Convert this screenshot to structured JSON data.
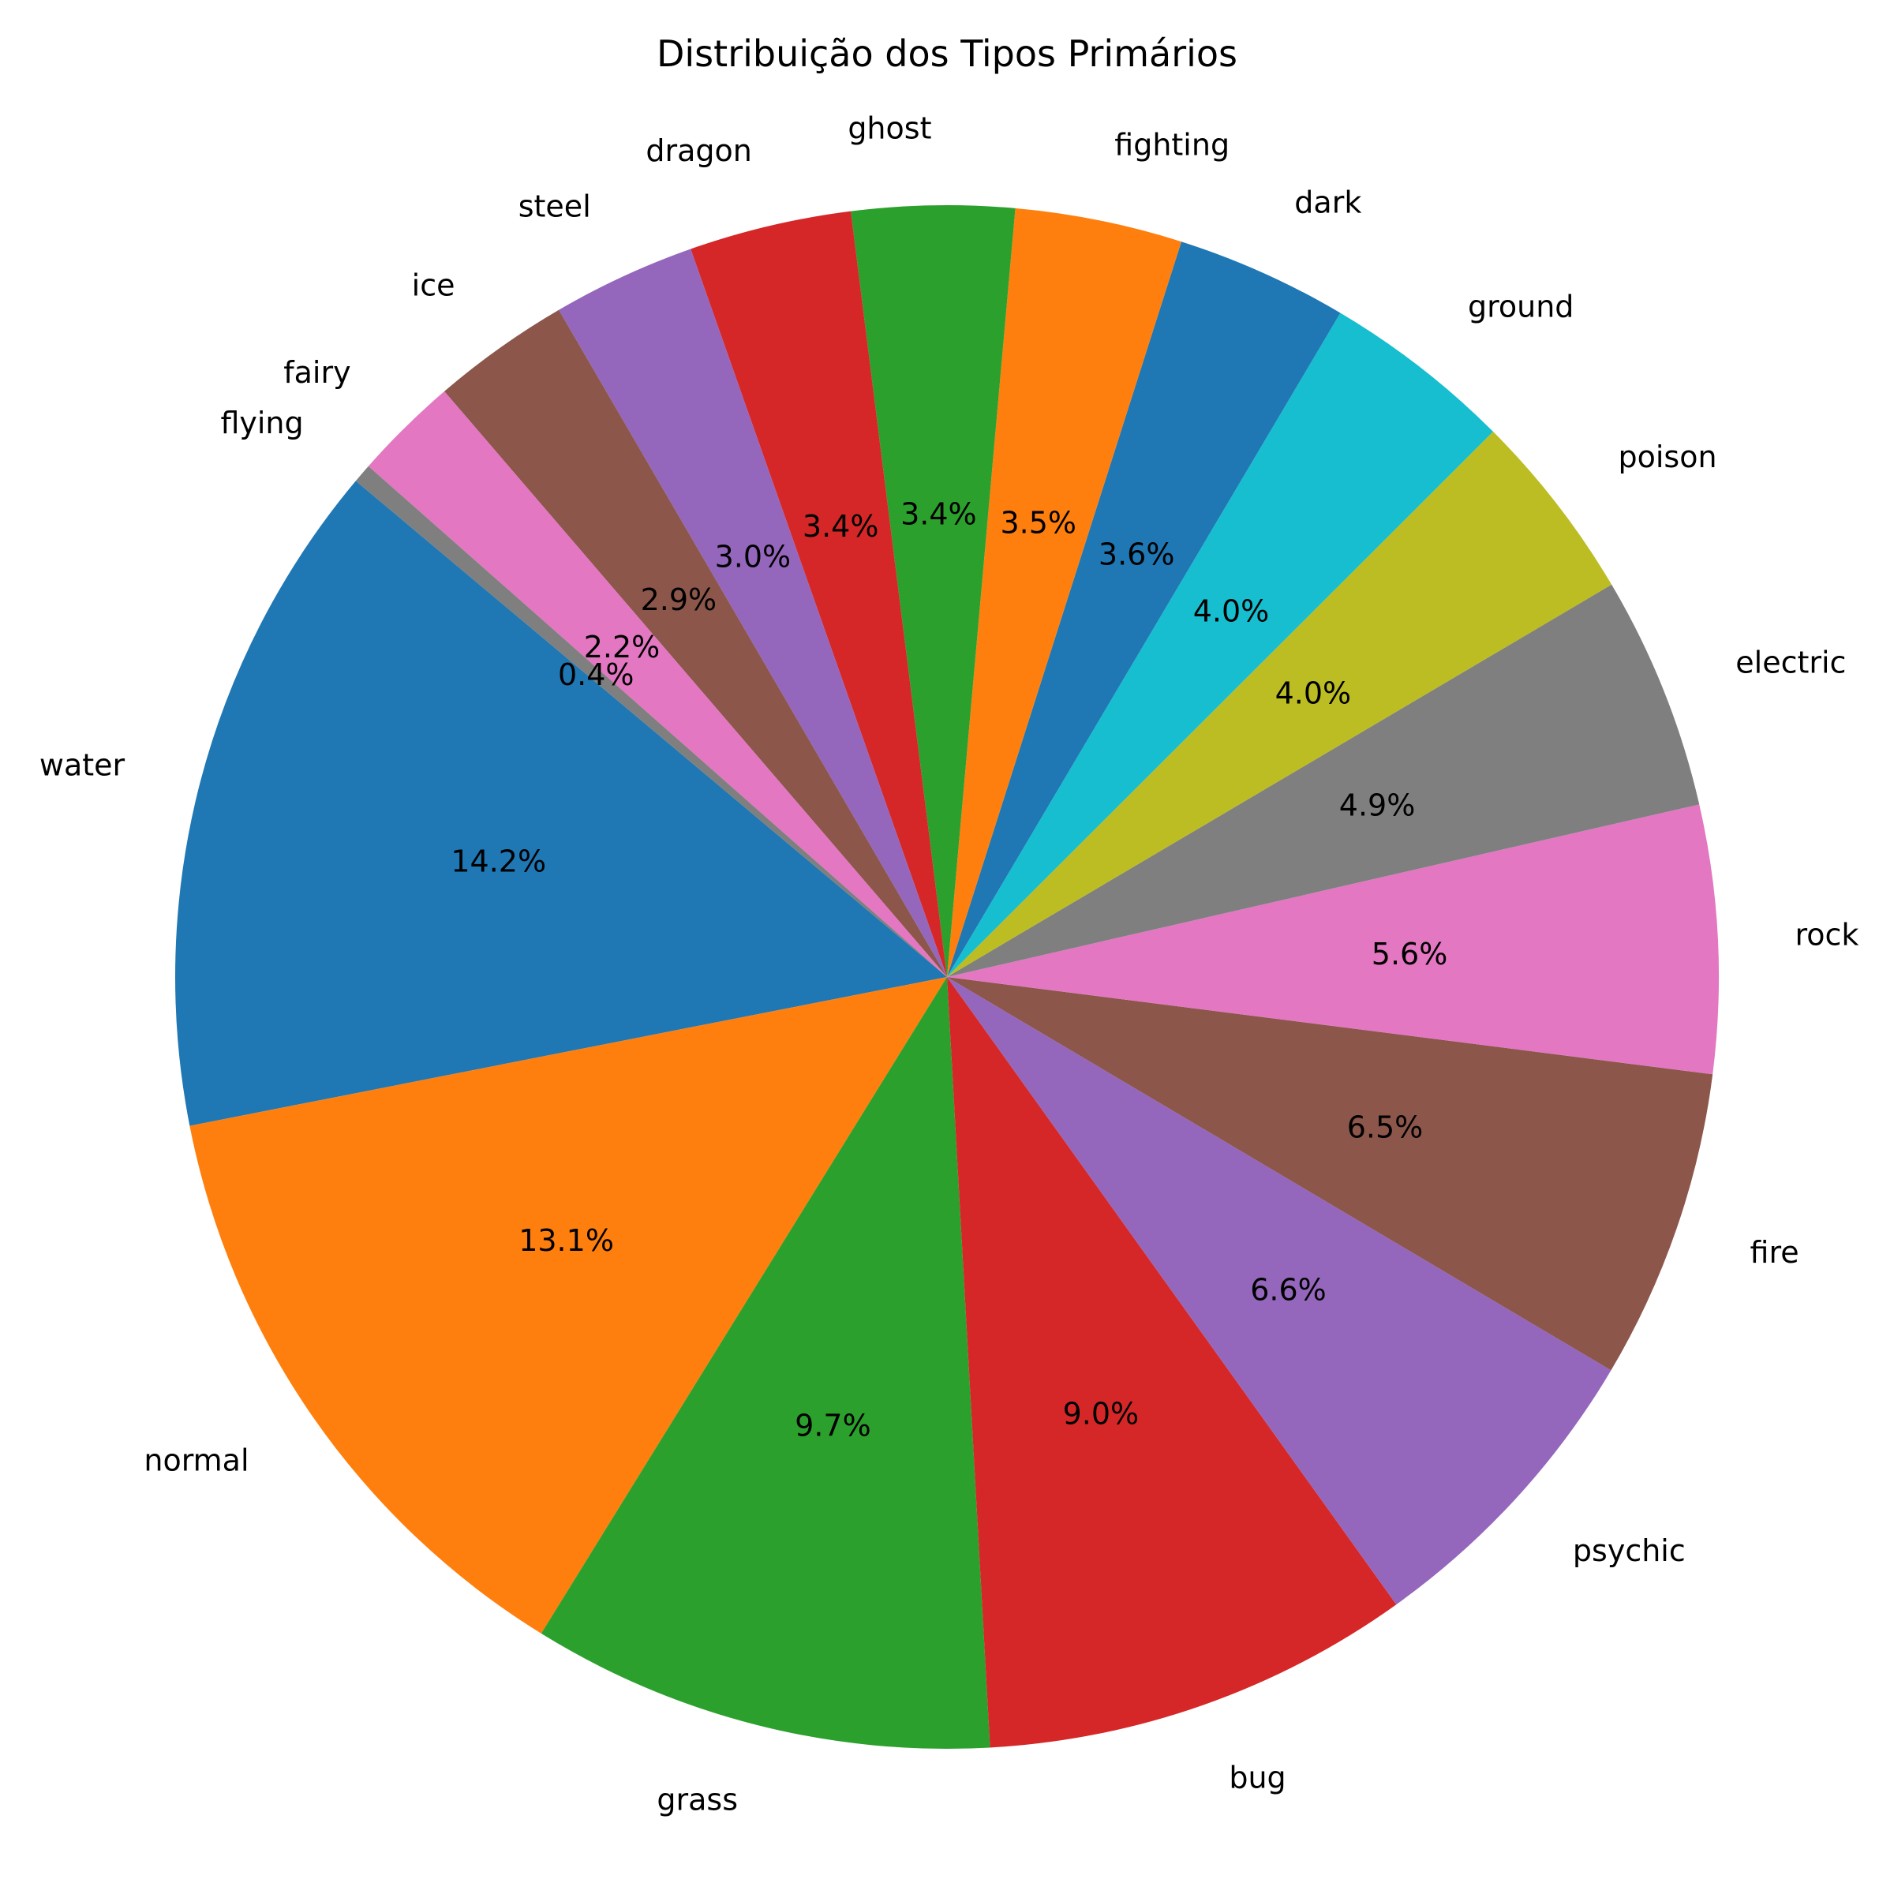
{
  "chart_data": {
    "type": "pie",
    "title": "Distribuição dos Tipos Primários",
    "start_angle_deg": 140,
    "direction": "counterclockwise",
    "slices": [
      {
        "label": "water",
        "pct_label": "14.2%",
        "value": 14.2,
        "color": "#1f77b4"
      },
      {
        "label": "normal",
        "pct_label": "13.1%",
        "value": 13.1,
        "color": "#ff7f0e"
      },
      {
        "label": "grass",
        "pct_label": "9.7%",
        "value": 9.7,
        "color": "#2ca02c"
      },
      {
        "label": "bug",
        "pct_label": "9.0%",
        "value": 9.0,
        "color": "#d62728"
      },
      {
        "label": "psychic",
        "pct_label": "6.6%",
        "value": 6.6,
        "color": "#9467bd"
      },
      {
        "label": "fire",
        "pct_label": "6.5%",
        "value": 6.5,
        "color": "#8c564b"
      },
      {
        "label": "rock",
        "pct_label": "5.6%",
        "value": 5.6,
        "color": "#e377c2"
      },
      {
        "label": "electric",
        "pct_label": "4.9%",
        "value": 4.9,
        "color": "#7f7f7f"
      },
      {
        "label": "poison",
        "pct_label": "4.0%",
        "value": 4.0,
        "color": "#bcbd22"
      },
      {
        "label": "ground",
        "pct_label": "4.0%",
        "value": 4.0,
        "color": "#17becf"
      },
      {
        "label": "dark",
        "pct_label": "3.6%",
        "value": 3.6,
        "color": "#1f77b4"
      },
      {
        "label": "fighting",
        "pct_label": "3.5%",
        "value": 3.5,
        "color": "#ff7f0e"
      },
      {
        "label": "ghost",
        "pct_label": "3.4%",
        "value": 3.4,
        "color": "#2ca02c"
      },
      {
        "label": "dragon",
        "pct_label": "3.4%",
        "value": 3.4,
        "color": "#d62728"
      },
      {
        "label": "steel",
        "pct_label": "3.0%",
        "value": 3.0,
        "color": "#9467bd"
      },
      {
        "label": "ice",
        "pct_label": "2.9%",
        "value": 2.9,
        "color": "#8c564b"
      },
      {
        "label": "fairy",
        "pct_label": "2.2%",
        "value": 2.2,
        "color": "#e377c2"
      },
      {
        "label": "flying",
        "pct_label": "0.4%",
        "value": 0.4,
        "color": "#7f7f7f"
      }
    ]
  }
}
